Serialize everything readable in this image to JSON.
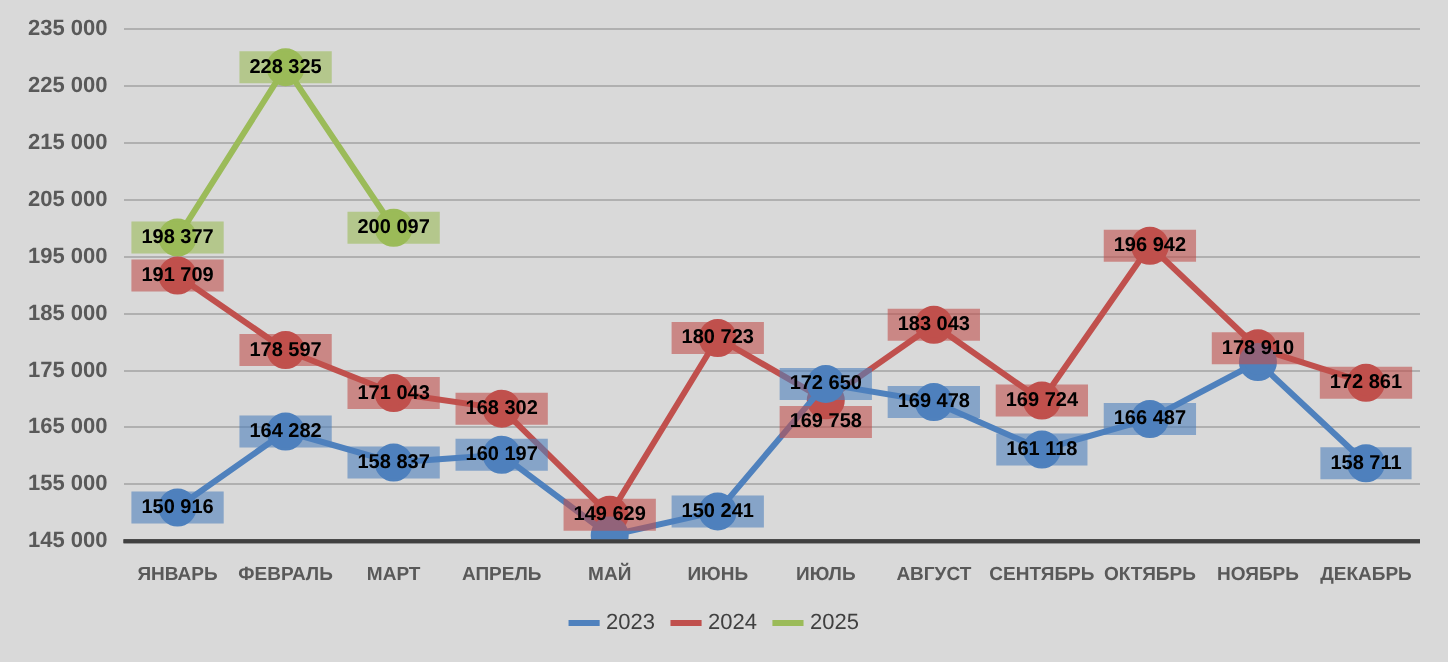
{
  "chart_data": {
    "type": "line",
    "categories": [
      "ЯНВАРЬ",
      "ФЕВРАЛЬ",
      "МАРТ",
      "АПРЕЛЬ",
      "МАЙ",
      "ИЮНЬ",
      "ИЮЛЬ",
      "АВГУСТ",
      "СЕНТЯБРЬ",
      "ОКТЯБРЬ",
      "НОЯБРЬ",
      "ДЕКАБРЬ"
    ],
    "series": [
      {
        "name": "2023",
        "color": "#4f81bd",
        "values": [
          150916,
          164282,
          158837,
          160197,
          146000,
          150241,
          172650,
          169478,
          161118,
          166487,
          176500,
          158711
        ],
        "value_labels": [
          "150 916",
          "164 282",
          "158 837",
          "160 197",
          null,
          "150 241",
          "172 650",
          "169 478",
          "161 118",
          "166 487",
          null,
          "158 711"
        ]
      },
      {
        "name": "2024",
        "color": "#c0504d",
        "values": [
          191709,
          178597,
          171043,
          168302,
          149629,
          180723,
          169758,
          183043,
          169724,
          196942,
          178910,
          172861
        ],
        "value_labels": [
          "191 709",
          "178 597",
          "171 043",
          "168 302",
          "149 629",
          "180 723",
          "169 758",
          "183 043",
          "169 724",
          "196 942",
          "178 910",
          "172 861"
        ]
      },
      {
        "name": "2025",
        "color": "#9bbb59",
        "values": [
          198377,
          228325,
          200097,
          null,
          null,
          null,
          null,
          null,
          null,
          null,
          null,
          null
        ],
        "value_labels": [
          "198 377",
          "228 325",
          "200 097",
          null,
          null,
          null,
          null,
          null,
          null,
          null,
          null,
          null
        ]
      }
    ],
    "ylim": [
      145000,
      235000
    ],
    "yticks": [
      {
        "value": 145000,
        "label": "145 000"
      },
      {
        "value": 155000,
        "label": "155 000"
      },
      {
        "value": 165000,
        "label": "165 000"
      },
      {
        "value": 175000,
        "label": "175 000"
      },
      {
        "value": 185000,
        "label": "185 000"
      },
      {
        "value": 195000,
        "label": "195 000"
      },
      {
        "value": 205000,
        "label": "205 000"
      },
      {
        "value": 215000,
        "label": "215 000"
      },
      {
        "value": 225000,
        "label": "225 000"
      },
      {
        "value": 235000,
        "label": "235 000"
      }
    ],
    "grid": "y",
    "legend": "bottom",
    "marker": "circle",
    "line_style": "solid"
  }
}
